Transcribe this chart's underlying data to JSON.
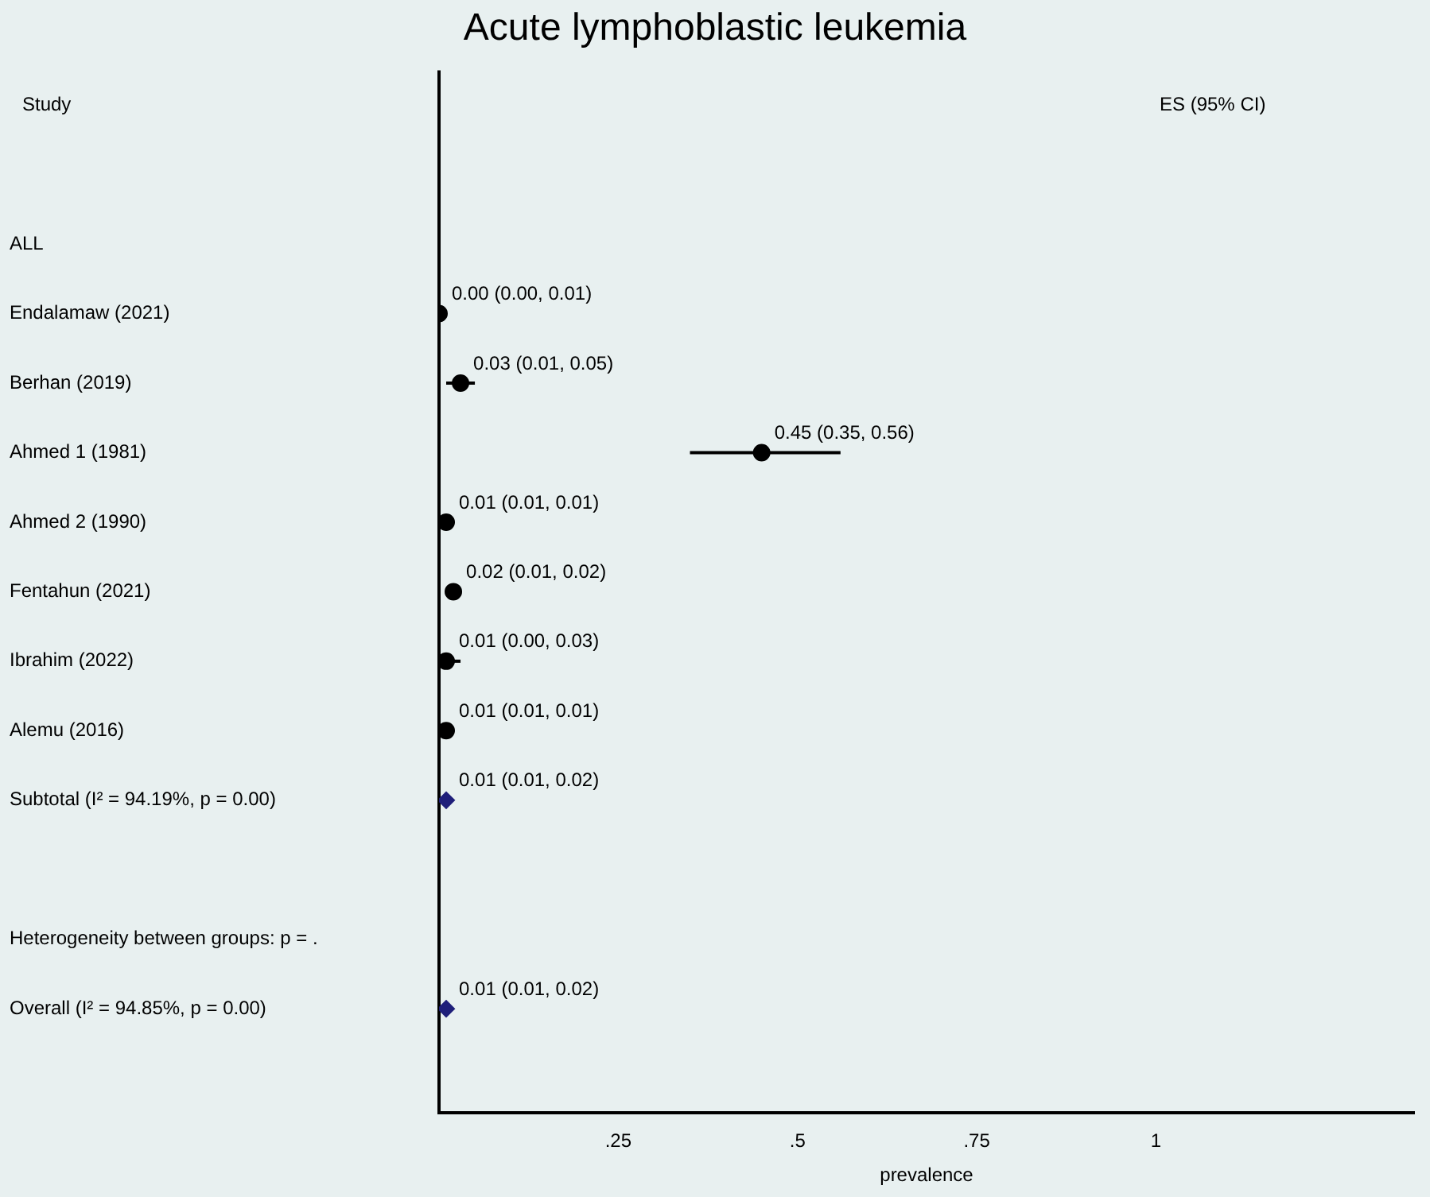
{
  "chart_data": {
    "type": "scatter",
    "orientation": "horizontal",
    "title": "Acute lymphoblastic leukemia",
    "xlabel": "prevalence",
    "annotations": [
      "Study",
      "ES (95% CI)"
    ],
    "categories": [
      null,
      null,
      "ALL",
      "Endalamaw (2021)",
      "Berhan (2019)",
      "Ahmed 1 (1981)",
      "Ahmed 2 (1990)",
      "Fentahun (2021)",
      "Ibrahim (2022)",
      "Alemu (2016)",
      "Subtotal (I² = 94.19%, p = 0.00)",
      null,
      "Heterogeneity between groups: p = .",
      "Overall (I² = 94.85%, p = 0.00)",
      null
    ],
    "series": [
      {
        "color": "#000000",
        "marker": "circle",
        "values": [
          null,
          null,
          null,
          0.0,
          0.03,
          0.45,
          0.01,
          0.02,
          0.01,
          0.01,
          null,
          null,
          null,
          null,
          null
        ],
        "errors": [
          null,
          null,
          null,
          [
            0.0,
            0.01
          ],
          [
            0.01,
            0.05
          ],
          [
            0.35,
            0.56
          ],
          [
            0.01,
            0.01
          ],
          [
            0.01,
            0.02
          ],
          [
            0.0,
            0.03
          ],
          [
            0.01,
            0.01
          ],
          null,
          null,
          null,
          null,
          null
        ],
        "value_labels": [
          null,
          null,
          null,
          "0.00 (0.00, 0.01)",
          "0.03 (0.01, 0.05)",
          "0.45 (0.35, 0.56)",
          "0.01 (0.01, 0.01)",
          "0.02 (0.01, 0.02)",
          "0.01 (0.00, 0.03)",
          "0.01 (0.01, 0.01)",
          null,
          null,
          null,
          null,
          null
        ]
      },
      {
        "color": "#1f1f7a",
        "marker": "diamond",
        "values": [
          null,
          null,
          null,
          null,
          null,
          null,
          null,
          null,
          null,
          null,
          0.01,
          null,
          null,
          0.01,
          null
        ],
        "errors": [
          null,
          null,
          null,
          null,
          null,
          null,
          null,
          null,
          null,
          null,
          [
            0.01,
            0.02
          ],
          null,
          null,
          [
            0.01,
            0.02
          ],
          null
        ],
        "value_labels": [
          null,
          null,
          null,
          null,
          null,
          null,
          null,
          null,
          null,
          null,
          "0.01 (0.01, 0.02)",
          null,
          null,
          "0.01 (0.01, 0.02)",
          null
        ]
      }
    ],
    "xlim": [
      0,
      1.36
    ],
    "xticks": [
      {
        "value": 0.25,
        "label": ".25"
      },
      {
        "value": 0.5,
        "label": ".5"
      },
      {
        "value": 0.75,
        "label": ".75"
      },
      {
        "value": 1,
        "label": "1"
      }
    ],
    "ref_lines": [
      {
        "axis": "x",
        "value": 0,
        "color": "#000000"
      }
    ],
    "grid": false,
    "legend": false
  }
}
